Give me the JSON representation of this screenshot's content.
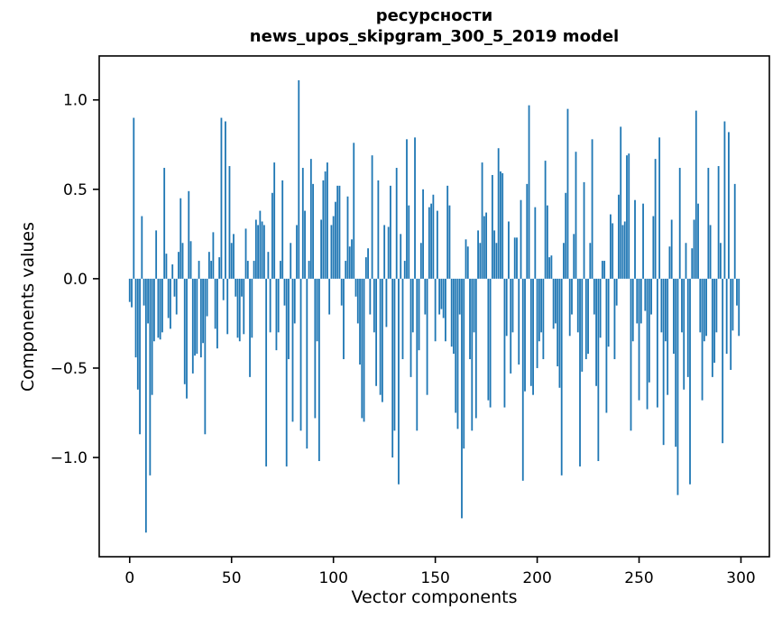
{
  "chart": {
    "title_line1": "ресурсности",
    "title_line2": "news_upos_skipgram_300_5_2019 model",
    "xlabel": "Vector components",
    "ylabel": "Components values"
  },
  "chart_data": {
    "type": "bar",
    "title": "ресурсности\nnews_upos_skipgram_300_5_2019 model",
    "xlabel": "Vector components",
    "ylabel": "Components values",
    "n_components": 300,
    "bar_color": "#1f77b4",
    "background": "#ffffff",
    "grid": false,
    "legend": false,
    "xlim": [
      -14.95,
      313.95
    ],
    "ylim": [
      -1.555,
      1.246
    ],
    "xticks": [
      0,
      50,
      100,
      150,
      200,
      250,
      300
    ],
    "yticks": [
      1.0,
      0.5,
      0.0,
      -0.5,
      -1.0
    ],
    "ytick_labels": [
      "1.0",
      "0.5",
      "0.0",
      "−0.5",
      "−1.0"
    ],
    "values": [
      -0.13,
      -0.16,
      0.9,
      -0.44,
      -0.62,
      -0.87,
      0.35,
      -0.15,
      -1.42,
      -0.25,
      -1.1,
      -0.65,
      -0.35,
      0.27,
      -0.33,
      -0.34,
      -0.3,
      0.62,
      0.14,
      -0.22,
      -0.28,
      0.08,
      -0.1,
      -0.2,
      0.15,
      0.45,
      0.2,
      -0.59,
      -0.67,
      0.49,
      0.21,
      -0.53,
      -0.43,
      -0.42,
      0.1,
      -0.44,
      -0.36,
      -0.87,
      -0.21,
      0.15,
      0.1,
      0.26,
      -0.28,
      -0.39,
      0.12,
      0.9,
      -0.12,
      0.88,
      -0.31,
      0.63,
      0.2,
      0.25,
      -0.1,
      -0.33,
      -0.35,
      -0.1,
      -0.31,
      0.28,
      0.1,
      -0.55,
      -0.33,
      0.1,
      0.33,
      0.3,
      0.38,
      0.32,
      0.3,
      -1.05,
      0.15,
      -0.3,
      0.48,
      0.65,
      -0.4,
      -0.3,
      0.1,
      0.55,
      -0.15,
      -1.05,
      -0.45,
      0.2,
      -0.8,
      -0.25,
      0.3,
      1.11,
      -0.85,
      0.62,
      0.38,
      -0.95,
      0.1,
      0.67,
      0.53,
      -0.78,
      -0.35,
      -1.02,
      0.33,
      0.55,
      0.6,
      0.65,
      -0.2,
      0.3,
      0.35,
      0.43,
      0.52,
      0.52,
      -0.15,
      -0.45,
      0.1,
      0.46,
      0.18,
      0.22,
      0.76,
      -0.1,
      -0.25,
      -0.48,
      -0.78,
      -0.8,
      0.12,
      0.17,
      -0.2,
      0.69,
      -0.3,
      -0.6,
      0.55,
      -0.65,
      -0.69,
      0.3,
      -0.27,
      0.29,
      0.52,
      -1.0,
      -0.85,
      0.62,
      -1.15,
      0.25,
      -0.45,
      0.1,
      0.78,
      0.41,
      -0.55,
      -0.3,
      0.79,
      -0.85,
      -0.4,
      0.2,
      0.5,
      -0.2,
      -0.65,
      0.4,
      0.42,
      0.47,
      -0.35,
      0.38,
      -0.2,
      -0.17,
      -0.22,
      -0.35,
      0.52,
      0.41,
      -0.38,
      -0.42,
      -0.75,
      -0.84,
      -0.2,
      -1.34,
      -0.95,
      0.22,
      0.18,
      -0.45,
      -0.85,
      -0.3,
      -0.78,
      0.27,
      0.2,
      0.65,
      0.35,
      0.37,
      -0.68,
      -0.72,
      0.58,
      0.27,
      0.2,
      0.73,
      0.6,
      0.59,
      -0.72,
      -0.32,
      0.32,
      -0.53,
      -0.3,
      0.23,
      0.23,
      -0.48,
      0.44,
      -1.13,
      -0.63,
      0.53,
      0.97,
      -0.6,
      -0.65,
      0.4,
      -0.5,
      -0.35,
      -0.3,
      -0.45,
      0.66,
      0.41,
      0.12,
      0.13,
      -0.28,
      -0.25,
      -0.49,
      -0.61,
      -1.1,
      0.2,
      0.48,
      0.95,
      -0.32,
      -0.2,
      0.25,
      0.71,
      -0.3,
      -1.05,
      -0.52,
      0.54,
      -0.45,
      -0.42,
      0.2,
      0.78,
      -0.2,
      -0.6,
      -1.02,
      -0.33,
      0.1,
      0.1,
      -0.75,
      -0.38,
      0.36,
      0.31,
      -0.45,
      -0.15,
      0.47,
      0.85,
      0.3,
      0.32,
      0.69,
      0.7,
      -0.85,
      -0.35,
      0.44,
      -0.25,
      -0.68,
      -0.25,
      0.42,
      -0.18,
      -0.73,
      -0.58,
      -0.2,
      0.35,
      0.67,
      -0.72,
      0.79,
      -0.3,
      -0.93,
      -0.35,
      -0.65,
      0.18,
      0.33,
      -0.42,
      -0.94,
      -1.21,
      0.62,
      -0.3,
      -0.62,
      0.2,
      -0.55,
      -1.15,
      0.17,
      0.33,
      0.94,
      0.42,
      -0.3,
      -0.68,
      -0.35,
      -0.32,
      0.62,
      0.3,
      -0.55,
      -0.47,
      -0.3,
      0.63,
      0.2,
      -0.92,
      0.88,
      -0.42,
      0.82,
      -0.51,
      -0.29,
      0.53,
      -0.15,
      -0.32
    ]
  }
}
